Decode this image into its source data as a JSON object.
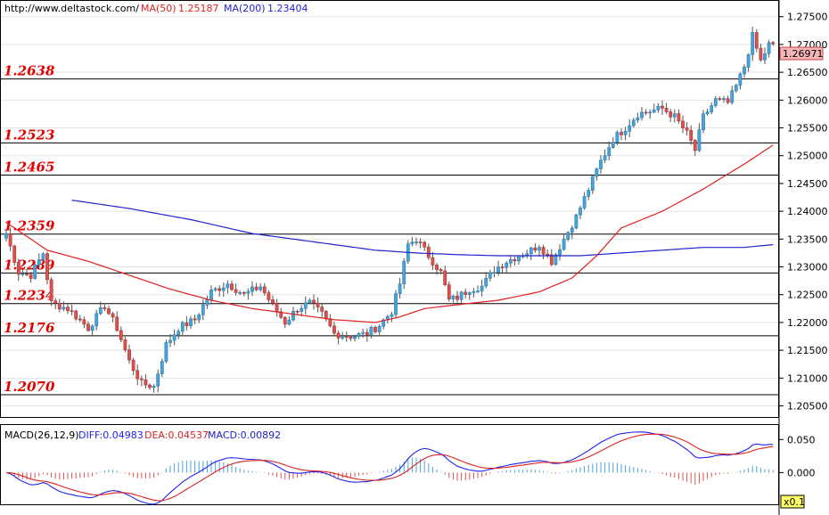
{
  "header": {
    "url": "http://www.deltastock.com/",
    "ma_short_label": "MA(50)",
    "ma_short_value": "1.25187",
    "ma_long_label": "MA(200)",
    "ma_long_value": "1.23404"
  },
  "macd_header": {
    "label": "MACD(26,12,9)",
    "diff": "DIFF:0.04983",
    "dea": "DEA:0.04537",
    "macd": "MACD:0.00892"
  },
  "scale_badge": "x0.1",
  "colors": {
    "bull": "#4aa3d8",
    "bear": "#d9534f",
    "ma_short": "#e02020",
    "ma_long": "#2222cc",
    "level_text": "#e00000",
    "diff_line": "#2222ee",
    "dea_line": "#dd2222",
    "current_box": "#f4b6b6"
  },
  "chart_data": {
    "type": "candlestick",
    "price_axis": {
      "ticks": [
        "1.27500",
        "1.27000",
        "1.26500",
        "1.26000",
        "1.25500",
        "1.25000",
        "1.24500",
        "1.24000",
        "1.23500",
        "1.23000",
        "1.22500",
        "1.22000",
        "1.21500",
        "1.21000",
        "1.20500"
      ],
      "range": [
        1.203,
        1.278
      ]
    },
    "levels": [
      "1.2638",
      "1.2523",
      "1.2465",
      "1.2359",
      "1.2289",
      "1.2234",
      "1.2176",
      "1.2070"
    ],
    "current_price": "1.26971",
    "macd_axis": {
      "ticks": [
        "0.050",
        "0.000"
      ],
      "range": [
        -0.048,
        0.072
      ]
    },
    "waypoints": [
      [
        0,
        1.236
      ],
      [
        3,
        1.229
      ],
      [
        6,
        1.2285
      ],
      [
        9,
        1.2325
      ],
      [
        11,
        1.2235
      ],
      [
        15,
        1.2225
      ],
      [
        20,
        1.219
      ],
      [
        24,
        1.223
      ],
      [
        27,
        1.219
      ],
      [
        30,
        1.213
      ],
      [
        33,
        1.209
      ],
      [
        36,
        1.2085
      ],
      [
        39,
        1.216
      ],
      [
        42,
        1.219
      ],
      [
        46,
        1.2205
      ],
      [
        50,
        1.2255
      ],
      [
        54,
        1.227
      ],
      [
        58,
        1.225
      ],
      [
        62,
        1.2265
      ],
      [
        65,
        1.223
      ],
      [
        68,
        1.22
      ],
      [
        71,
        1.2225
      ],
      [
        74,
        1.2235
      ],
      [
        77,
        1.2215
      ],
      [
        80,
        1.218
      ],
      [
        84,
        1.2175
      ],
      [
        88,
        1.218
      ],
      [
        91,
        1.2195
      ],
      [
        94,
        1.222
      ],
      [
        96,
        1.227
      ],
      [
        98,
        1.234
      ],
      [
        100,
        1.235
      ],
      [
        103,
        1.232
      ],
      [
        106,
        1.229
      ],
      [
        108,
        1.224
      ],
      [
        110,
        1.2245
      ],
      [
        113,
        1.226
      ],
      [
        116,
        1.2265
      ],
      [
        119,
        1.2295
      ],
      [
        122,
        1.231
      ],
      [
        125,
        1.232
      ],
      [
        128,
        1.233
      ],
      [
        130,
        1.234
      ],
      [
        133,
        1.231
      ],
      [
        136,
        1.235
      ],
      [
        139,
        1.239
      ],
      [
        142,
        1.244
      ],
      [
        145,
        1.249
      ],
      [
        148,
        1.253
      ],
      [
        151,
        1.255
      ],
      [
        154,
        1.2575
      ],
      [
        157,
        1.258
      ],
      [
        160,
        1.2585
      ],
      [
        163,
        1.257
      ],
      [
        166,
        1.254
      ],
      [
        168,
        1.251
      ],
      [
        170,
        1.257
      ],
      [
        173,
        1.26
      ],
      [
        176,
        1.2595
      ],
      [
        178,
        1.2625
      ],
      [
        180,
        1.266
      ],
      [
        182,
        1.2715
      ],
      [
        184,
        1.267
      ],
      [
        186,
        1.27
      ],
      [
        187,
        1.2697
      ]
    ],
    "ma50": [
      [
        0,
        1.238
      ],
      [
        10,
        1.233
      ],
      [
        20,
        1.231
      ],
      [
        30,
        1.2285
      ],
      [
        40,
        1.226
      ],
      [
        50,
        1.224
      ],
      [
        60,
        1.2225
      ],
      [
        70,
        1.2215
      ],
      [
        80,
        1.2205
      ],
      [
        90,
        1.22
      ],
      [
        96,
        1.221
      ],
      [
        102,
        1.2225
      ],
      [
        110,
        1.2232
      ],
      [
        120,
        1.224
      ],
      [
        130,
        1.2255
      ],
      [
        138,
        1.228
      ],
      [
        144,
        1.232
      ],
      [
        150,
        1.237
      ],
      [
        160,
        1.24
      ],
      [
        170,
        1.244
      ],
      [
        180,
        1.2485
      ],
      [
        187,
        1.2519
      ]
    ],
    "ma200": [
      [
        16,
        1.242
      ],
      [
        30,
        1.2405
      ],
      [
        45,
        1.2385
      ],
      [
        60,
        1.236
      ],
      [
        75,
        1.2345
      ],
      [
        90,
        1.233
      ],
      [
        100,
        1.2325
      ],
      [
        110,
        1.2322
      ],
      [
        120,
        1.232
      ],
      [
        130,
        1.232
      ],
      [
        140,
        1.232
      ],
      [
        150,
        1.2325
      ],
      [
        160,
        1.233
      ],
      [
        170,
        1.2335
      ],
      [
        180,
        1.2335
      ],
      [
        187,
        1.234
      ]
    ]
  }
}
